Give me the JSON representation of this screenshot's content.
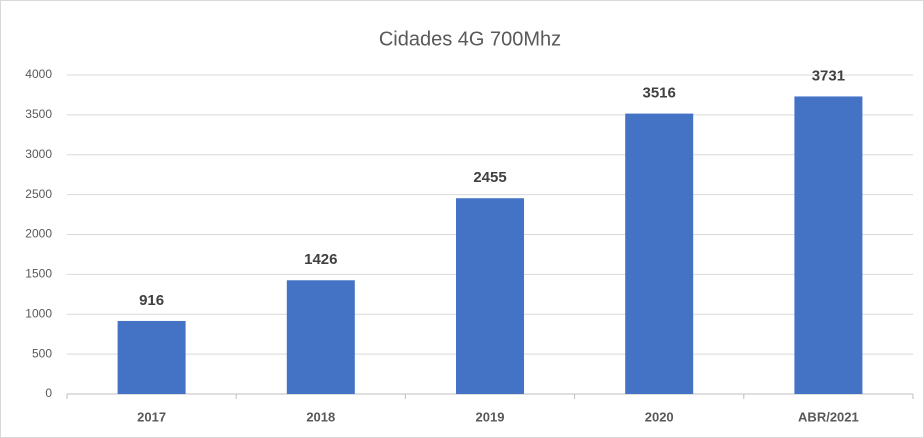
{
  "chart_data": {
    "type": "bar",
    "title": "Cidades 4G 700Mhz",
    "categories": [
      "2017",
      "2018",
      "2019",
      "2020",
      "ABR/2021"
    ],
    "values": [
      916,
      1426,
      2455,
      3516,
      3731
    ],
    "color": "#4472c4",
    "ylim": [
      0,
      4000
    ],
    "yticks": [
      0,
      500,
      1000,
      1500,
      2000,
      2500,
      3000,
      3500,
      4000
    ],
    "grid": true
  }
}
